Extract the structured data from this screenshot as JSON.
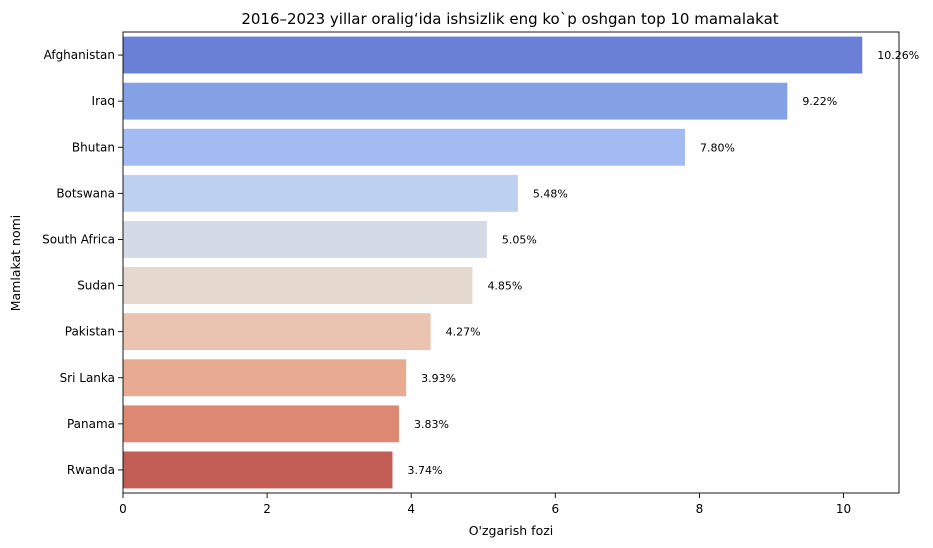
{
  "chart_data": {
    "type": "bar",
    "orientation": "horizontal",
    "title": "2016–2023 yillar oraligʻida ishsizlik eng ko`p oshgan top 10 mamalakat",
    "xlabel": "O'zgarish fozi",
    "ylabel": "Mamlakat nomi",
    "categories": [
      "Afghanistan",
      "Iraq",
      "Bhutan",
      "Botswana",
      "South Africa",
      "Sudan",
      "Pakistan",
      "Sri Lanka",
      "Panama",
      "Rwanda"
    ],
    "values": [
      10.26,
      9.22,
      7.8,
      5.48,
      5.05,
      4.85,
      4.27,
      3.93,
      3.83,
      3.74
    ],
    "data_labels": [
      "10.26%",
      "9.22%",
      "7.80%",
      "5.48%",
      "5.05%",
      "4.85%",
      "4.27%",
      "3.93%",
      "3.83%",
      "3.74%"
    ],
    "bar_colors": [
      "#6a80d6",
      "#85a1e6",
      "#a2bcf3",
      "#bdd0f0",
      "#d5dbe6",
      "#e4d8cf",
      "#eac4b0",
      "#e8aa90",
      "#dd8873",
      "#c25d55"
    ],
    "xlim": [
      0,
      10.77
    ],
    "xticks": [
      0,
      2,
      4,
      6,
      8,
      10
    ],
    "grid": false,
    "legend": false
  }
}
